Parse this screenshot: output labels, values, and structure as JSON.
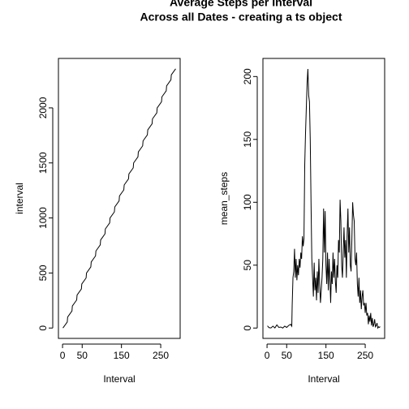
{
  "chart_data": [
    {
      "type": "line",
      "title": "Average Steps per Interval",
      "subtitle": "Across all Dates - creating a ts object",
      "x_label": "Interval",
      "y_label": "interval",
      "x": [
        1,
        12,
        13,
        24,
        25,
        36,
        37,
        48,
        49,
        60,
        61,
        72,
        73,
        84,
        85,
        96,
        97,
        108,
        109,
        120,
        121,
        132,
        133,
        144,
        145,
        156,
        157,
        168,
        169,
        180,
        181,
        192,
        193,
        204,
        205,
        216,
        217,
        228,
        229,
        240,
        241,
        252,
        253,
        264,
        265,
        276,
        277,
        288
      ],
      "values": [
        0,
        55,
        100,
        155,
        200,
        255,
        300,
        355,
        400,
        455,
        500,
        555,
        600,
        655,
        700,
        755,
        800,
        855,
        900,
        955,
        1000,
        1055,
        1100,
        1155,
        1200,
        1255,
        1300,
        1355,
        1400,
        1455,
        1500,
        1555,
        1600,
        1655,
        1700,
        1755,
        1800,
        1855,
        1900,
        1955,
        2000,
        2055,
        2100,
        2155,
        2200,
        2255,
        2300,
        2355
      ],
      "color": "#000000",
      "xlim": [
        -10.48,
        299.48
      ],
      "xticks": [
        0,
        50,
        150,
        250
      ],
      "ylim": [
        -94.2,
        2449.2
      ],
      "yticks": [
        0,
        500,
        1000,
        1500,
        2000
      ]
    },
    {
      "type": "line",
      "x_label": "Interval",
      "y_label": "mean_steps",
      "x": [
        1,
        5,
        10,
        15,
        20,
        25,
        30,
        35,
        40,
        45,
        50,
        55,
        60,
        63,
        64,
        66,
        68,
        70,
        72,
        74,
        76,
        78,
        80,
        82,
        84,
        86,
        88,
        90,
        92,
        94,
        96,
        98,
        100,
        102,
        104,
        106,
        108,
        110,
        112,
        114,
        116,
        118,
        120,
        122,
        124,
        126,
        128,
        130,
        132,
        134,
        136,
        138,
        140,
        142,
        144,
        146,
        148,
        150,
        152,
        154,
        156,
        158,
        160,
        162,
        164,
        166,
        168,
        170,
        172,
        174,
        176,
        178,
        180,
        182,
        184,
        186,
        188,
        190,
        192,
        194,
        196,
        198,
        200,
        202,
        204,
        206,
        208,
        210,
        212,
        214,
        216,
        218,
        220,
        222,
        224,
        226,
        228,
        230,
        232,
        234,
        236,
        238,
        240,
        242,
        244,
        246,
        248,
        250,
        252,
        254,
        256,
        258,
        260,
        262,
        264,
        266,
        268,
        270,
        272,
        274,
        276,
        278,
        280,
        282,
        284,
        286,
        288
      ],
      "values": [
        1.7,
        0.3,
        0.1,
        1.5,
        0.1,
        2.5,
        0.5,
        0.8,
        0,
        1.5,
        0.5,
        2,
        3,
        1.5,
        18,
        40,
        45,
        63,
        40,
        55,
        38,
        50,
        42,
        55,
        48,
        60,
        55,
        73,
        65,
        71,
        130,
        155,
        175,
        195,
        206,
        185,
        180,
        150,
        100,
        55,
        40,
        25,
        52,
        30,
        40,
        22,
        45,
        28,
        55,
        35,
        20,
        30,
        40,
        55,
        95,
        60,
        93,
        50,
        35,
        60,
        30,
        55,
        40,
        20,
        45,
        35,
        60,
        40,
        55,
        37,
        28,
        50,
        40,
        70,
        60,
        102,
        85,
        50,
        40,
        60,
        80,
        56,
        70,
        40,
        75,
        95,
        60,
        80,
        50,
        45,
        70,
        100,
        90,
        85,
        55,
        50,
        60,
        35,
        25,
        40,
        20,
        30,
        15,
        25,
        30,
        18,
        20,
        12,
        20,
        10,
        12,
        3,
        10,
        5,
        12,
        2,
        8,
        1,
        3,
        7,
        1,
        2,
        4,
        0,
        1,
        0.5,
        1.1
      ],
      "color": "#000000",
      "xlim": [
        -10.48,
        299.48
      ],
      "xticks": [
        0,
        50,
        150,
        250
      ],
      "ylim": [
        -8.24,
        214.4
      ],
      "yticks": [
        0,
        50,
        100,
        150,
        200
      ]
    }
  ]
}
